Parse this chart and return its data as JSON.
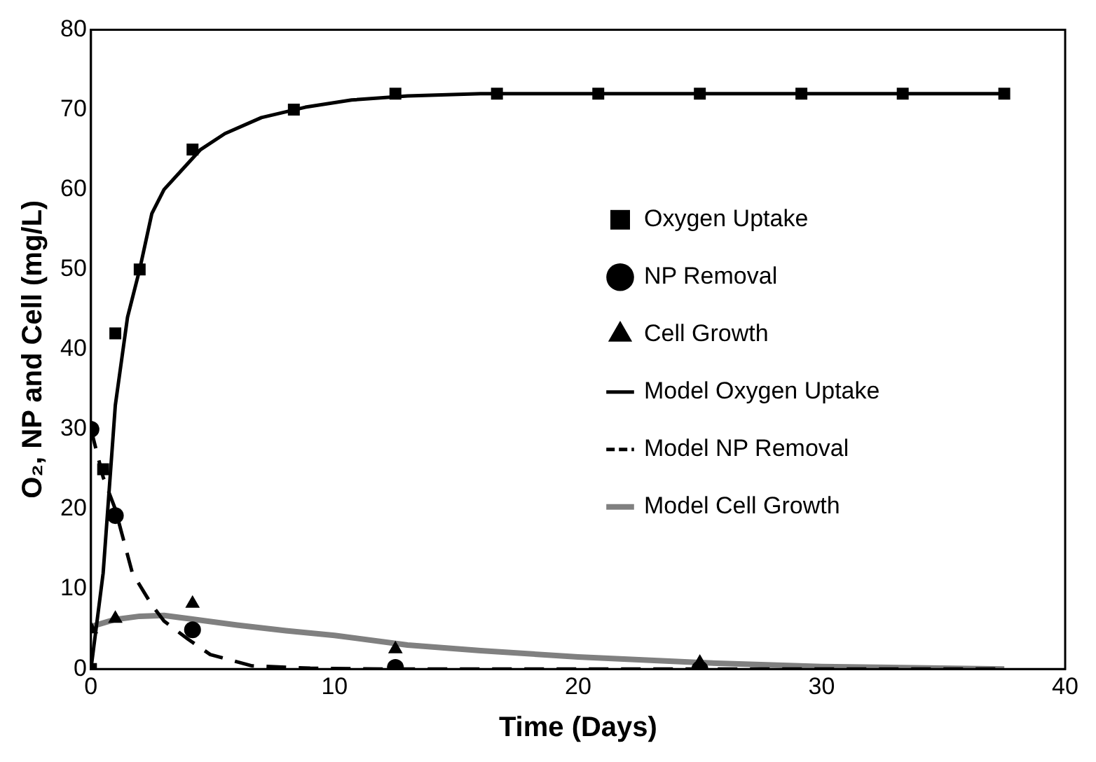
{
  "chart_data": {
    "type": "line",
    "xlabel": "Time (Days)",
    "ylabel": "O₂, NP and Cell (mg/L)",
    "xlim": [
      0,
      40
    ],
    "xticks": [
      0,
      10,
      20,
      30,
      40
    ],
    "ylim": [
      0,
      80
    ],
    "yticks": [
      0,
      10,
      20,
      30,
      40,
      50,
      60,
      70,
      80
    ],
    "grid": false,
    "legend": "right",
    "series": [
      {
        "name": "Model Oxygen Uptake",
        "color": "#000000",
        "line_style": "solid",
        "marker": "none",
        "x": [
          0,
          0.5,
          1,
          1.5,
          2,
          2.5,
          3,
          3.6,
          4.5,
          5.5,
          7,
          8.8,
          10.7,
          13,
          16,
          20,
          25,
          30,
          37.5
        ],
        "values": [
          0,
          12,
          33,
          44,
          50,
          57,
          60,
          62,
          65,
          67,
          69,
          70.3,
          71.2,
          71.7,
          72,
          72,
          72,
          72,
          72
        ]
      },
      {
        "name": "Model NP Removal",
        "color": "#000000",
        "line_style": "dashed",
        "marker": "none",
        "x": [
          0,
          0.5,
          1,
          1.7,
          2.5,
          3,
          4,
          4.9,
          6.6,
          9,
          12,
          20,
          30,
          37.5
        ],
        "values": [
          30,
          24,
          20,
          12,
          8,
          6,
          3.7,
          1.8,
          0.4,
          0.1,
          0,
          0,
          0,
          0
        ]
      },
      {
        "name": "Model Cell Growth",
        "color": "#808080",
        "line_style": "solid",
        "marker": "none",
        "x": [
          0,
          1,
          2,
          3,
          4,
          6,
          8,
          10,
          13,
          16,
          20,
          25,
          30,
          37.5
        ],
        "values": [
          5.3,
          6.2,
          6.6,
          6.7,
          6.3,
          5.5,
          4.8,
          4.2,
          3,
          2.3,
          1.5,
          0.8,
          0.3,
          0
        ]
      },
      {
        "name": "Oxygen Uptake",
        "type": "scatter",
        "color": "#000000",
        "marker": "square",
        "x": [
          0,
          0.5,
          1,
          2,
          4.17,
          8.33,
          12.5,
          16.67,
          20.83,
          25,
          29.17,
          33.33,
          37.5
        ],
        "values": [
          0,
          25,
          42,
          50,
          65,
          70,
          72,
          72,
          72,
          72,
          72,
          72,
          72
        ]
      },
      {
        "name": "NP Removal",
        "type": "scatter",
        "color": "#000000",
        "marker": "circle",
        "x": [
          0,
          1,
          4.17,
          12.5,
          25
        ],
        "values": [
          30,
          19.2,
          4.9,
          0.2,
          0
        ]
      },
      {
        "name": "Cell Growth",
        "type": "scatter",
        "color": "#000000",
        "marker": "triangle",
        "x": [
          0,
          1,
          4.17,
          12.5,
          25
        ],
        "values": [
          5,
          6.3,
          8.2,
          2.5,
          0.8
        ]
      }
    ]
  }
}
